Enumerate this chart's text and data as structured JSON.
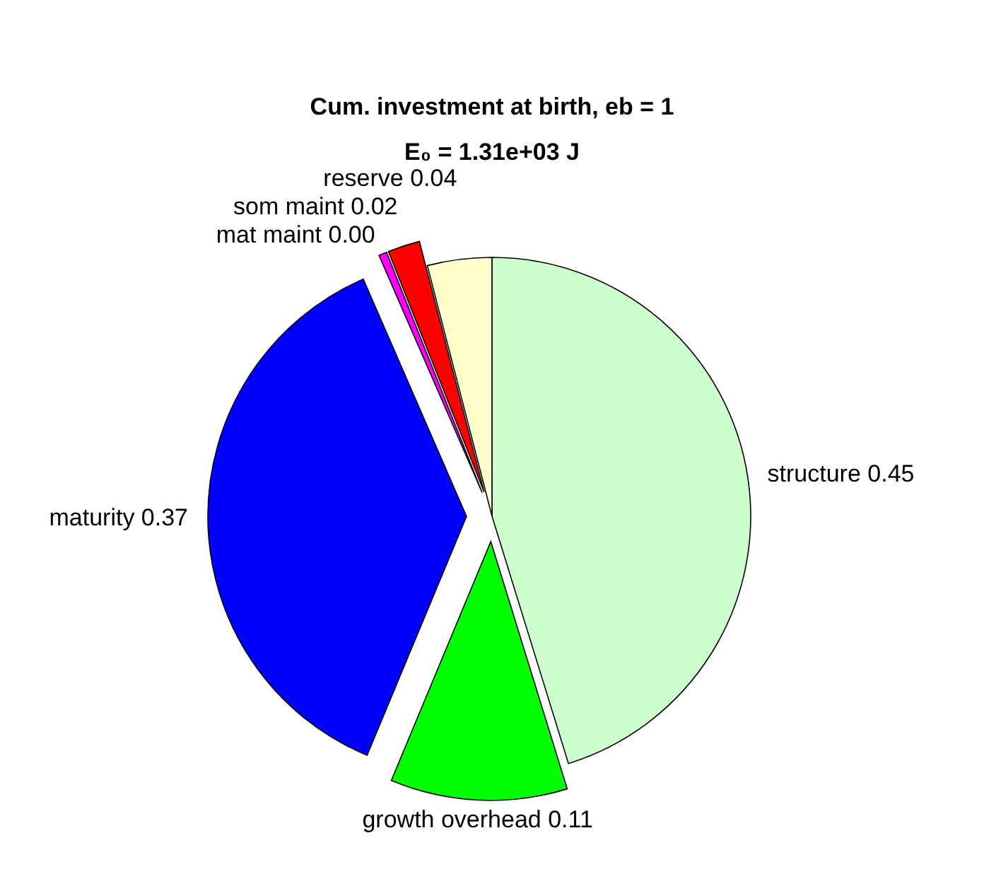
{
  "chart_data": {
    "type": "pie",
    "title": "Cum. investment at birth, eb = 1",
    "subtitle": "E₀ = 1.31e+03 J",
    "categories": [
      "structure",
      "growth overhead",
      "maturity",
      "mat maint",
      "som maint",
      "reserve"
    ],
    "values": [
      0.45,
      0.11,
      0.37,
      0.005,
      0.02,
      0.04
    ],
    "value_labels": [
      "0.45",
      "0.11",
      "0.37",
      "0.00",
      "0.02",
      "0.04"
    ],
    "colors": [
      "#ccffcc",
      "#00ff00",
      "#0000ff",
      "#ff00ff",
      "#ff0000",
      "#ffffcc"
    ]
  }
}
